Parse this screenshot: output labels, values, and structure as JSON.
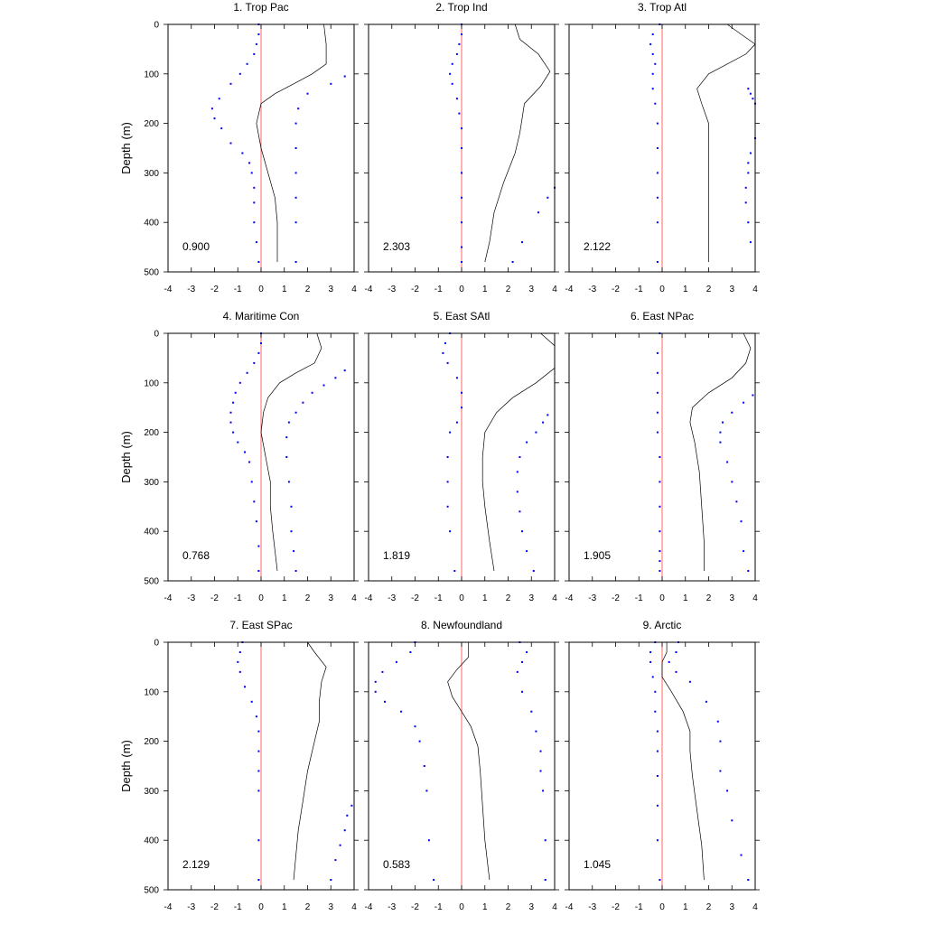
{
  "chart_data": [
    {
      "type": "line",
      "title": "1. Trop Pac",
      "annotation": "0.900",
      "ylabel": "Depth (m)",
      "xlim": [
        -4,
        4
      ],
      "ylim": [
        0,
        500
      ],
      "xticks": [
        "-4",
        "-3",
        "-2",
        "-1",
        "0",
        "1",
        "2",
        "3",
        "4"
      ],
      "yticks": [
        "0",
        "100",
        "200",
        "300",
        "400",
        "500"
      ],
      "line": {
        "x": [
          2.7,
          2.8,
          2.8,
          2.2,
          1.4,
          0.6,
          0,
          -0.2,
          0.0,
          0.3,
          0.6,
          0.7,
          0.7,
          0.7
        ],
        "y": [
          0,
          40,
          80,
          100,
          120,
          140,
          160,
          200,
          250,
          300,
          350,
          400,
          450,
          480
        ]
      },
      "dots_left": {
        "x": [
          -0.1,
          -0.1,
          -0.2,
          -0.3,
          -0.6,
          -0.9,
          -1.3,
          -1.8,
          -2.1,
          -2.0,
          -1.7,
          -1.3,
          -0.8,
          -0.5,
          -0.4,
          -0.3,
          -0.3,
          -0.3,
          -0.2,
          -0.1
        ],
        "y": [
          0,
          20,
          40,
          60,
          80,
          100,
          120,
          150,
          170,
          190,
          210,
          240,
          260,
          280,
          300,
          330,
          360,
          400,
          440,
          480
        ]
      },
      "dots_right": {
        "x": [
          3.6,
          3.0,
          2.0,
          1.6,
          1.5,
          1.5,
          1.5,
          1.5,
          1.5,
          1.5
        ],
        "y": [
          105,
          120,
          140,
          170,
          200,
          250,
          300,
          350,
          400,
          480
        ]
      }
    },
    {
      "type": "line",
      "title": "2. Trop Ind",
      "annotation": "2.303",
      "ylabel": "",
      "xlim": [
        -4,
        4
      ],
      "ylim": [
        0,
        500
      ],
      "xticks": [
        "-4",
        "-3",
        "-2",
        "-1",
        "0",
        "1",
        "2",
        "3",
        "4"
      ],
      "yticks": [
        "0",
        "100",
        "200",
        "300",
        "400",
        "500"
      ],
      "line": {
        "x": [
          2.3,
          2.5,
          3.3,
          3.8,
          3.4,
          2.7,
          2.6,
          2.5,
          2.3,
          1.8,
          1.4,
          1.2,
          1.0
        ],
        "y": [
          0,
          30,
          60,
          95,
          125,
          160,
          190,
          220,
          260,
          320,
          380,
          440,
          480
        ]
      },
      "dots_left": {
        "x": [
          0,
          0,
          -0.1,
          -0.2,
          -0.4,
          -0.5,
          -0.4,
          -0.2,
          -0.1,
          0,
          0,
          0,
          0,
          0,
          0,
          0
        ],
        "y": [
          0,
          20,
          40,
          60,
          80,
          100,
          120,
          150,
          180,
          210,
          250,
          300,
          350,
          400,
          450,
          480
        ]
      },
      "dots_right": {
        "x": [
          4.0,
          3.7,
          3.3,
          2.6,
          2.2
        ],
        "y": [
          330,
          350,
          380,
          440,
          480
        ]
      }
    },
    {
      "type": "line",
      "title": "3. Trop Atl",
      "annotation": "2.122",
      "ylabel": "",
      "xlim": [
        -4,
        4
      ],
      "ylim": [
        0,
        500
      ],
      "xticks": [
        "-4",
        "-3",
        "-2",
        "-1",
        "0",
        "1",
        "2",
        "3",
        "4"
      ],
      "yticks": [
        "0",
        "100",
        "200",
        "300",
        "400",
        "500"
      ],
      "line": {
        "x": [
          2.8,
          3.4,
          4.0,
          3.6,
          2.0,
          1.5,
          1.7,
          2.0,
          2.0,
          2.0,
          2.0,
          2.0
        ],
        "y": [
          0,
          20,
          40,
          60,
          100,
          130,
          160,
          200,
          250,
          300,
          400,
          480
        ]
      },
      "dots_left": {
        "x": [
          -0.1,
          -0.4,
          -0.5,
          -0.4,
          -0.3,
          -0.4,
          -0.4,
          -0.3,
          -0.2,
          -0.2,
          -0.2,
          -0.2,
          -0.2,
          -0.2
        ],
        "y": [
          0,
          20,
          40,
          60,
          80,
          100,
          130,
          160,
          200,
          250,
          300,
          350,
          400,
          480
        ]
      },
      "dots_right": {
        "x": [
          3.7,
          3.8,
          3.9,
          4.0,
          4.0,
          3.8,
          3.7,
          3.7,
          3.6,
          3.6,
          3.7,
          3.8
        ],
        "y": [
          130,
          140,
          150,
          160,
          230,
          260,
          280,
          300,
          330,
          360,
          400,
          440
        ]
      }
    },
    {
      "type": "line",
      "title": "4. Maritime Con",
      "annotation": "0.768",
      "ylabel": "Depth (m)",
      "xlim": [
        -4,
        4
      ],
      "ylim": [
        0,
        500
      ],
      "xticks": [
        "-4",
        "-3",
        "-2",
        "-1",
        "0",
        "1",
        "2",
        "3",
        "4"
      ],
      "yticks": [
        "0",
        "100",
        "200",
        "300",
        "400",
        "500"
      ],
      "line": {
        "x": [
          2.4,
          2.6,
          2.3,
          1.5,
          0.8,
          0.3,
          0.1,
          0.0,
          0.2,
          0.4,
          0.4,
          0.5,
          0.7
        ],
        "y": [
          0,
          30,
          60,
          80,
          100,
          130,
          160,
          200,
          250,
          300,
          350,
          400,
          480
        ]
      },
      "dots_left": {
        "x": [
          0,
          0,
          -0.1,
          -0.3,
          -0.6,
          -0.9,
          -1.1,
          -1.2,
          -1.3,
          -1.3,
          -1.2,
          -1.0,
          -0.7,
          -0.5,
          -0.4,
          -0.3,
          -0.2,
          -0.1,
          -0.1
        ],
        "y": [
          0,
          20,
          40,
          60,
          80,
          100,
          120,
          140,
          160,
          180,
          200,
          220,
          240,
          260,
          300,
          340,
          380,
          430,
          480
        ]
      },
      "dots_right": {
        "x": [
          3.6,
          3.2,
          2.7,
          2.2,
          1.8,
          1.5,
          1.2,
          1.1,
          1.1,
          1.2,
          1.3,
          1.3,
          1.4,
          1.5
        ],
        "y": [
          75,
          90,
          105,
          120,
          140,
          160,
          180,
          210,
          250,
          300,
          350,
          400,
          440,
          480
        ]
      }
    },
    {
      "type": "line",
      "title": "5. East SAtl",
      "annotation": "1.819",
      "ylabel": "",
      "xlim": [
        -4,
        4
      ],
      "ylim": [
        0,
        500
      ],
      "xticks": [
        "-4",
        "-3",
        "-2",
        "-1",
        "0",
        "1",
        "2",
        "3",
        "4"
      ],
      "yticks": [
        "0",
        "100",
        "200",
        "300",
        "400",
        "500"
      ],
      "line": {
        "x": [
          3.4,
          4.0,
          4.0,
          3.2,
          2.2,
          1.5,
          1.0,
          0.9,
          0.9,
          1.0,
          1.2,
          1.4
        ],
        "y": [
          0,
          25,
          70,
          100,
          130,
          160,
          200,
          250,
          300,
          350,
          420,
          480
        ]
      },
      "dots_left": {
        "x": [
          -0.5,
          -0.7,
          -0.8,
          -0.6,
          -0.2,
          0,
          0,
          -0.2,
          -0.5,
          -0.6,
          -0.6,
          -0.6,
          -0.5,
          -0.3
        ],
        "y": [
          0,
          20,
          40,
          60,
          90,
          120,
          150,
          180,
          200,
          250,
          300,
          350,
          400,
          480
        ]
      },
      "dots_right": {
        "x": [
          3.7,
          3.5,
          3.2,
          2.8,
          2.5,
          2.4,
          2.4,
          2.5,
          2.6,
          2.8,
          3.1
        ],
        "y": [
          165,
          180,
          200,
          220,
          250,
          280,
          320,
          360,
          400,
          440,
          480
        ]
      }
    },
    {
      "type": "line",
      "title": "6. East NPac",
      "annotation": "1.905",
      "ylabel": "",
      "xlim": [
        -4,
        4
      ],
      "ylim": [
        0,
        500
      ],
      "xticks": [
        "-4",
        "-3",
        "-2",
        "-1",
        "0",
        "1",
        "2",
        "3",
        "4"
      ],
      "yticks": [
        "0",
        "100",
        "200",
        "300",
        "400",
        "500"
      ],
      "line": {
        "x": [
          3.5,
          3.8,
          3.6,
          3.0,
          2.0,
          1.3,
          1.2,
          1.4,
          1.6,
          1.7,
          1.8,
          1.8
        ],
        "y": [
          0,
          30,
          60,
          90,
          120,
          150,
          180,
          220,
          280,
          350,
          420,
          480
        ]
      },
      "dots_left": {
        "x": [
          -0.1,
          -0.2,
          -0.2,
          -0.2,
          -0.2,
          -0.2,
          -0.1,
          -0.1,
          -0.1,
          -0.1,
          -0.1,
          -0.1,
          -0.1
        ],
        "y": [
          0,
          40,
          80,
          120,
          160,
          200,
          250,
          300,
          350,
          400,
          440,
          460,
          480
        ]
      },
      "dots_right": {
        "x": [
          3.9,
          3.5,
          3.0,
          2.6,
          2.5,
          2.5,
          2.8,
          3.0,
          3.2,
          3.4,
          3.5,
          3.7
        ],
        "y": [
          125,
          140,
          160,
          180,
          200,
          220,
          260,
          300,
          340,
          380,
          440,
          480
        ]
      }
    },
    {
      "type": "line",
      "title": "7. East SPac",
      "annotation": "2.129",
      "ylabel": "Depth (m)",
      "xlim": [
        -4,
        4
      ],
      "ylim": [
        0,
        500
      ],
      "xticks": [
        "-4",
        "-3",
        "-2",
        "-1",
        "0",
        "1",
        "2",
        "3",
        "4"
      ],
      "yticks": [
        "0",
        "100",
        "200",
        "300",
        "400",
        "500"
      ],
      "line": {
        "x": [
          2.0,
          2.3,
          2.8,
          2.6,
          2.5,
          2.5,
          2.3,
          2.0,
          1.8,
          1.6,
          1.5,
          1.4
        ],
        "y": [
          0,
          20,
          50,
          80,
          120,
          160,
          200,
          260,
          320,
          380,
          430,
          480
        ]
      },
      "dots_left": {
        "x": [
          -0.8,
          -0.9,
          -1.0,
          -0.9,
          -0.7,
          -0.4,
          -0.2,
          -0.1,
          -0.1,
          -0.1,
          -0.1,
          -0.1,
          -0.1
        ],
        "y": [
          0,
          20,
          40,
          60,
          90,
          120,
          150,
          180,
          220,
          260,
          300,
          400,
          480
        ]
      },
      "dots_right": {
        "x": [
          3.9,
          3.7,
          3.6,
          3.4,
          3.2,
          3.0
        ],
        "y": [
          330,
          350,
          380,
          410,
          440,
          480
        ]
      }
    },
    {
      "type": "line",
      "title": "8. Newfoundland",
      "annotation": "0.583",
      "ylabel": "",
      "xlim": [
        -4,
        4
      ],
      "ylim": [
        0,
        500
      ],
      "xticks": [
        "-4",
        "-3",
        "-2",
        "-1",
        "0",
        "1",
        "2",
        "3",
        "4"
      ],
      "yticks": [
        "0",
        "100",
        "200",
        "300",
        "400",
        "500"
      ],
      "line": {
        "x": [
          0.3,
          0.3,
          -0.2,
          -0.6,
          -0.4,
          0,
          0.4,
          0.7,
          0.8,
          0.9,
          1.0,
          1.2
        ],
        "y": [
          0,
          30,
          55,
          80,
          110,
          140,
          170,
          210,
          260,
          330,
          400,
          480
        ]
      },
      "dots_left": {
        "x": [
          -2.0,
          -2.2,
          -2.8,
          -3.4,
          -3.7,
          -3.7,
          -3.3,
          -2.6,
          -2.0,
          -1.8,
          -1.6,
          -1.5,
          -1.4,
          -1.2
        ],
        "y": [
          0,
          20,
          40,
          60,
          80,
          100,
          120,
          140,
          170,
          200,
          250,
          300,
          400,
          480
        ]
      },
      "dots_right": {
        "x": [
          2.5,
          2.8,
          2.6,
          2.4,
          2.6,
          3.0,
          3.2,
          3.4,
          3.4,
          3.5,
          3.6,
          3.6
        ],
        "y": [
          0,
          20,
          40,
          60,
          100,
          140,
          180,
          220,
          260,
          300,
          400,
          480
        ]
      }
    },
    {
      "type": "line",
      "title": "9. Arctic",
      "annotation": "1.045",
      "ylabel": "",
      "xlim": [
        -4,
        4
      ],
      "ylim": [
        0,
        500
      ],
      "xticks": [
        "-4",
        "-3",
        "-2",
        "-1",
        "0",
        "1",
        "2",
        "3",
        "4"
      ],
      "yticks": [
        "0",
        "100",
        "200",
        "300",
        "400",
        "500"
      ],
      "line": {
        "x": [
          0.2,
          0.2,
          0.0,
          0.0,
          0.4,
          0.9,
          1.2,
          1.2,
          1.3,
          1.5,
          1.7,
          1.8
        ],
        "y": [
          0,
          20,
          40,
          70,
          100,
          140,
          180,
          220,
          270,
          340,
          410,
          480
        ]
      },
      "dots_left": {
        "x": [
          -0.3,
          -0.5,
          -0.5,
          -0.4,
          -0.3,
          -0.3,
          -0.2,
          -0.2,
          -0.2,
          -0.2,
          -0.2,
          -0.1
        ],
        "y": [
          0,
          20,
          40,
          70,
          100,
          140,
          180,
          220,
          270,
          330,
          400,
          480
        ]
      },
      "dots_right": {
        "x": [
          0.7,
          0.6,
          0.3,
          0.6,
          1.2,
          1.9,
          2.4,
          2.5,
          2.5,
          2.8,
          3.0,
          3.4,
          3.7
        ],
        "y": [
          0,
          20,
          40,
          60,
          80,
          120,
          160,
          200,
          260,
          300,
          360,
          430,
          480
        ]
      }
    }
  ]
}
